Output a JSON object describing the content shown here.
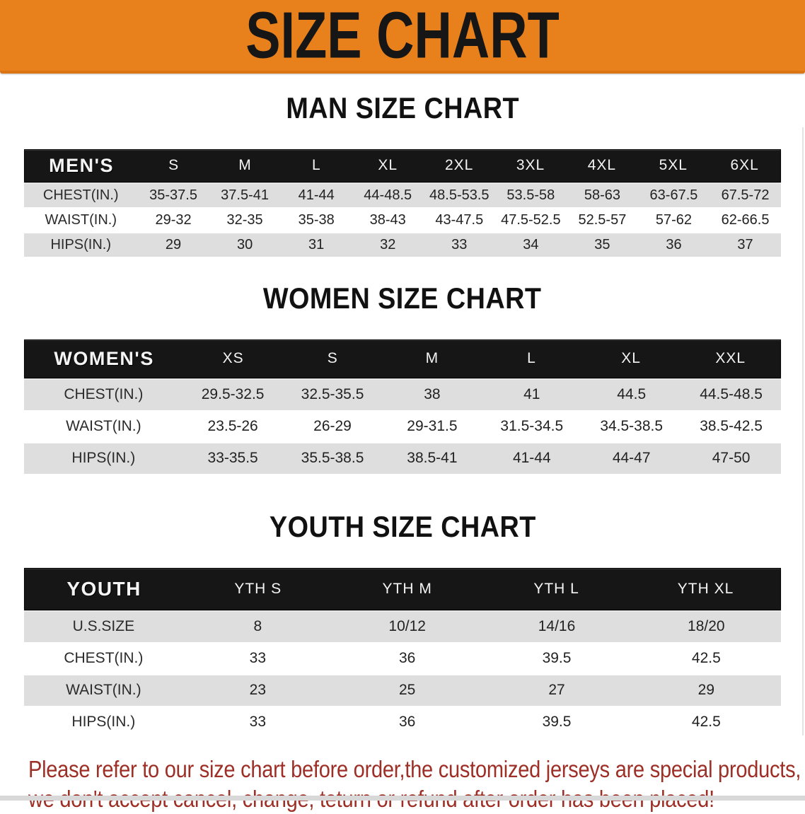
{
  "banner": {
    "title": "SIZE CHART",
    "bg_color": "#e8811c",
    "text_color": "#161616"
  },
  "sections": [
    {
      "id": "men",
      "title": "MAN SIZE CHART",
      "header_label": "MEN'S",
      "columns": [
        "S",
        "M",
        "L",
        "XL",
        "2XL",
        "3XL",
        "4XL",
        "5XL",
        "6XL"
      ],
      "rows": [
        {
          "label": "CHEST(IN.)",
          "values": [
            "35-37.5",
            "37.5-41",
            "41-44",
            "44-48.5",
            "48.5-53.5",
            "53.5-58",
            "58-63",
            "63-67.5",
            "67.5-72"
          ]
        },
        {
          "label": "WAIST(IN.)",
          "values": [
            "29-32",
            "32-35",
            "35-38",
            "38-43",
            "43-47.5",
            "47.5-52.5",
            "52.5-57",
            "57-62",
            "62-66.5"
          ]
        },
        {
          "label": "HIPS(IN.)",
          "values": [
            "29",
            "30",
            "31",
            "32",
            "33",
            "34",
            "35",
            "36",
            "37"
          ]
        }
      ]
    },
    {
      "id": "women",
      "title": "WOMEN SIZE CHART",
      "header_label": "WOMEN'S",
      "columns": [
        "XS",
        "S",
        "M",
        "L",
        "XL",
        "XXL"
      ],
      "rows": [
        {
          "label": "CHEST(IN.)",
          "values": [
            "29.5-32.5",
            "32.5-35.5",
            "38",
            "41",
            "44.5",
            "44.5-48.5"
          ]
        },
        {
          "label": "WAIST(IN.)",
          "values": [
            "23.5-26",
            "26-29",
            "29-31.5",
            "31.5-34.5",
            "34.5-38.5",
            "38.5-42.5"
          ]
        },
        {
          "label": "HIPS(IN.)",
          "values": [
            "33-35.5",
            "35.5-38.5",
            "38.5-41",
            "41-44",
            "44-47",
            "47-50"
          ]
        }
      ]
    },
    {
      "id": "youth",
      "title": "YOUTH SIZE CHART",
      "header_label": "YOUTH",
      "columns": [
        "YTH S",
        "YTH M",
        "YTH L",
        "YTH XL"
      ],
      "rows": [
        {
          "label": "U.S.SIZE",
          "values": [
            "8",
            "10/12",
            "14/16",
            "18/20"
          ]
        },
        {
          "label": "CHEST(IN.)",
          "values": [
            "33",
            "36",
            "39.5",
            "42.5"
          ]
        },
        {
          "label": "WAIST(IN.)",
          "values": [
            "23",
            "25",
            "27",
            "29"
          ]
        },
        {
          "label": "HIPS(IN.)",
          "values": [
            "33",
            "36",
            "39.5",
            "42.5"
          ]
        }
      ]
    }
  ],
  "disclaimer": {
    "line1": "Please refer to our size chart before order,the customized jerseys are special products,",
    "line2": "we don't accept cancel, change, teturn or refund after order has been placed!",
    "text_color": "#9d2f26"
  },
  "colors": {
    "header_bar": "#161616",
    "row_alt": "#dedede",
    "row_plain": "#ffffff"
  }
}
